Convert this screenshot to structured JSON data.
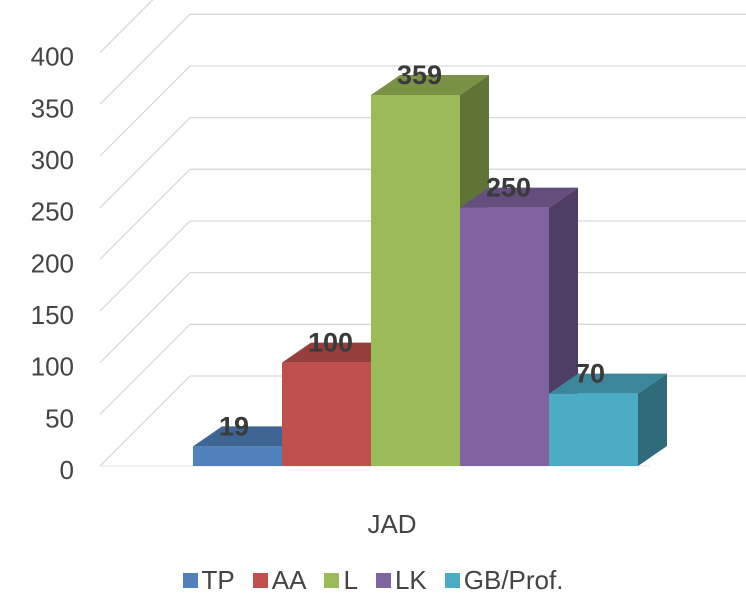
{
  "chart_data": {
    "type": "bar",
    "style": "3d-clustered-column",
    "categories": [
      "JAD"
    ],
    "series": [
      {
        "name": "TP",
        "values": [
          19
        ],
        "color": "#4F81BD"
      },
      {
        "name": "AA",
        "values": [
          100
        ],
        "color": "#C0504D"
      },
      {
        "name": "L",
        "values": [
          359
        ],
        "color": "#9BBB59"
      },
      {
        "name": "LK",
        "values": [
          250
        ],
        "color": "#8064A2"
      },
      {
        "name": "GB/Prof.",
        "values": [
          70
        ],
        "color": "#4BACC6"
      }
    ],
    "yticks": [
      "0",
      "50",
      "100",
      "150",
      "200",
      "250",
      "300",
      "350",
      "400"
    ],
    "ylim": [
      0,
      400
    ],
    "grid": true,
    "legend_position": "bottom",
    "data_labels": true
  }
}
